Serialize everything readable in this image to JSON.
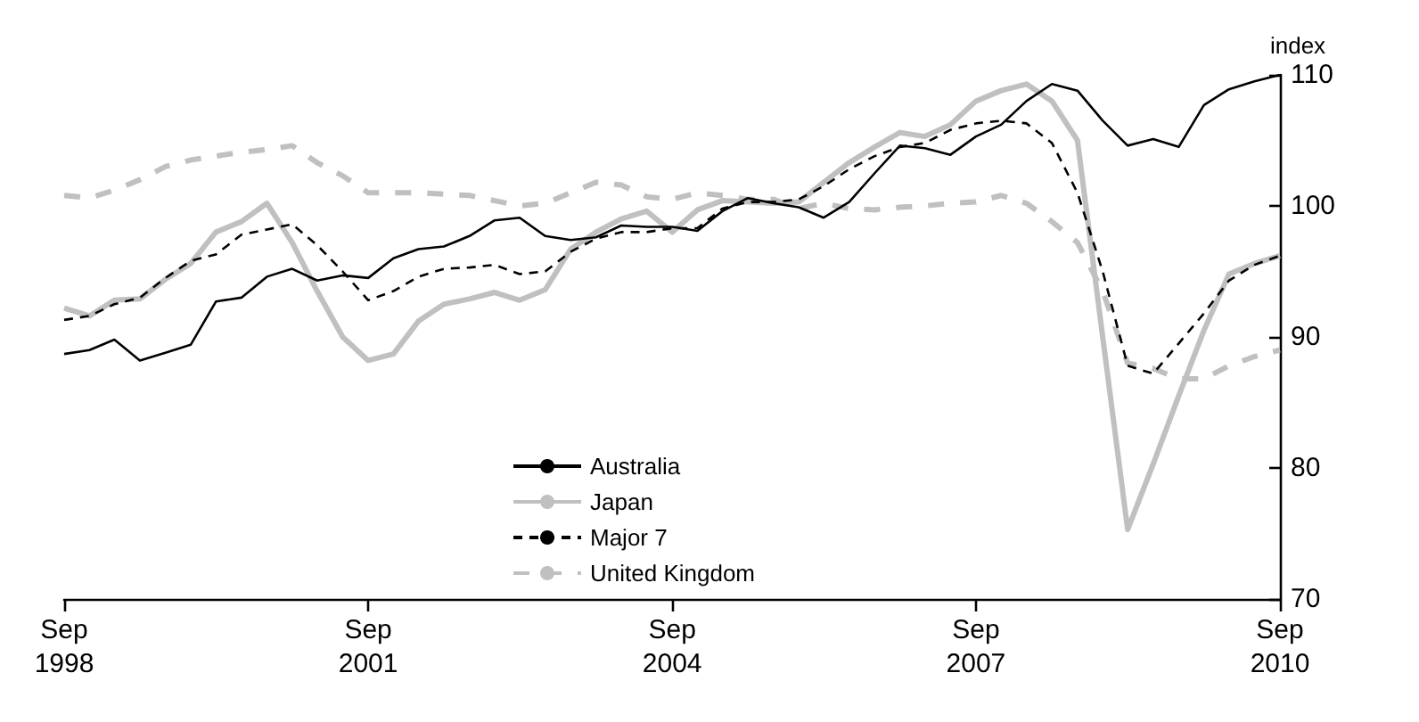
{
  "chart_data": {
    "type": "line",
    "ylabel": "index",
    "legend": "bottom",
    "grid": false,
    "marker": "none",
    "x": [
      "1998-09",
      "1998-12",
      "1999-03",
      "1999-06",
      "1999-09",
      "1999-12",
      "2000-03",
      "2000-06",
      "2000-09",
      "2000-12",
      "2001-03",
      "2001-06",
      "2001-09",
      "2001-12",
      "2002-03",
      "2002-06",
      "2002-09",
      "2002-12",
      "2003-03",
      "2003-06",
      "2003-09",
      "2003-12",
      "2004-03",
      "2004-06",
      "2004-09",
      "2004-12",
      "2005-03",
      "2005-06",
      "2005-09",
      "2005-12",
      "2006-03",
      "2006-06",
      "2006-09",
      "2006-12",
      "2007-03",
      "2007-06",
      "2007-09",
      "2007-12",
      "2008-03",
      "2008-06",
      "2008-09",
      "2008-12",
      "2009-03",
      "2009-06",
      "2009-09",
      "2009-12",
      "2010-03",
      "2010-06",
      "2010-09"
    ],
    "xlim": [
      "1998-09",
      "2010-09"
    ],
    "xticks": [
      {
        "value": "1998-09",
        "label": "Sep 1998"
      },
      {
        "value": "2001-09",
        "label": "Sep 2001"
      },
      {
        "value": "2004-09",
        "label": "Sep 2004"
      },
      {
        "value": "2007-09",
        "label": "Sep 2007"
      },
      {
        "value": "2010-09",
        "label": "Sep 2010"
      }
    ],
    "ylim": [
      70,
      110
    ],
    "yticks": [
      70,
      80,
      90,
      100,
      110
    ],
    "series": [
      {
        "name": "Australia",
        "color": "#000000",
        "line_style": "solid",
        "values": [
          88.7,
          89.0,
          89.8,
          88.2,
          88.8,
          89.4,
          92.7,
          93.0,
          94.6,
          95.2,
          94.3,
          94.7,
          94.5,
          96.0,
          96.7,
          96.9,
          97.7,
          98.9,
          99.1,
          97.7,
          97.4,
          97.6,
          98.5,
          98.4,
          98.4,
          98.1,
          99.6,
          100.6,
          100.2,
          99.9,
          99.1,
          100.3,
          102.5,
          104.6,
          104.4,
          103.9,
          105.3,
          106.2,
          108.0,
          109.3,
          108.8,
          106.5,
          104.6,
          105.1,
          104.5,
          107.7,
          108.9,
          109.5,
          110.0
        ]
      },
      {
        "name": "Japan",
        "color": "#c0c0c0",
        "line_style": "solid",
        "values": [
          92.2,
          91.6,
          92.8,
          92.9,
          94.4,
          95.6,
          98.0,
          98.8,
          100.2,
          97.2,
          93.5,
          90.0,
          88.2,
          88.7,
          91.2,
          92.5,
          92.9,
          93.4,
          92.8,
          93.6,
          96.7,
          98.0,
          99.0,
          99.6,
          98.0,
          99.7,
          100.4,
          100.3,
          100.2,
          100.3,
          101.8,
          103.3,
          104.5,
          105.6,
          105.3,
          106.2,
          108.0,
          108.8,
          109.3,
          108.0,
          105.0,
          90.0,
          75.3,
          80.3,
          85.5,
          90.5,
          94.8,
          95.6,
          96.2
        ]
      },
      {
        "name": "Major 7",
        "color": "#000000",
        "line_style": "dashed",
        "values": [
          91.3,
          91.6,
          92.5,
          93.0,
          94.5,
          95.8,
          96.3,
          97.8,
          98.2,
          98.6,
          97.0,
          95.0,
          92.8,
          93.5,
          94.6,
          95.2,
          95.3,
          95.5,
          94.8,
          95.0,
          96.5,
          97.5,
          98.0,
          98.0,
          98.3,
          98.3,
          99.8,
          100.3,
          100.3,
          100.5,
          101.5,
          102.8,
          103.8,
          104.5,
          104.8,
          105.8,
          106.3,
          106.5,
          106.3,
          104.8,
          101.0,
          95.0,
          87.8,
          87.2,
          89.5,
          91.8,
          94.3,
          95.5,
          96.2
        ]
      },
      {
        "name": "United Kingdom",
        "color": "#c0c0c0",
        "line_style": "dashed",
        "values": [
          100.8,
          100.6,
          101.2,
          102.0,
          103.0,
          103.5,
          103.8,
          104.1,
          104.3,
          104.6,
          103.3,
          102.3,
          101.0,
          101.0,
          101.0,
          100.9,
          100.8,
          100.4,
          100.0,
          100.2,
          101.0,
          101.8,
          101.6,
          100.7,
          100.5,
          101.0,
          100.8,
          100.5,
          100.5,
          99.8,
          100.2,
          99.8,
          99.7,
          99.9,
          100.0,
          100.2,
          100.3,
          100.8,
          100.2,
          98.8,
          97.2,
          93.5,
          88.0,
          87.6,
          86.8,
          86.8,
          87.8,
          88.5,
          89.0
        ]
      }
    ]
  }
}
